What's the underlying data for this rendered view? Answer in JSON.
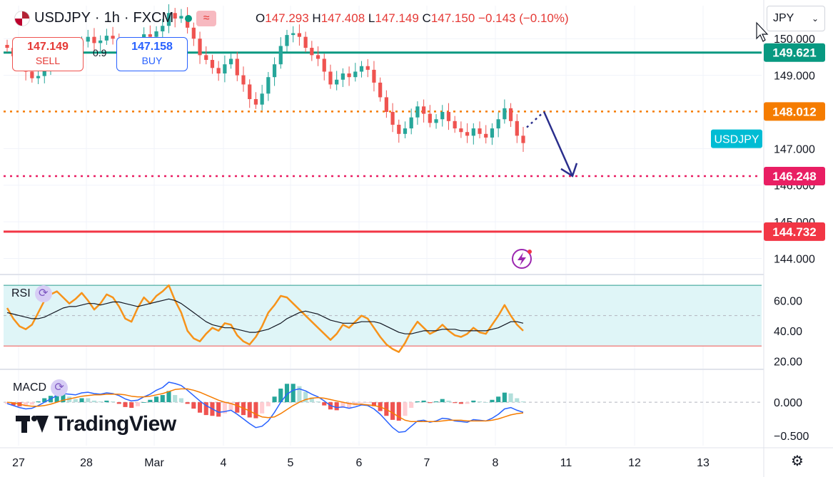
{
  "header": {
    "symbol": "USDJPY",
    "sep1": "·",
    "interval": "1h",
    "sep2": "·",
    "exchange": "FXCM",
    "ohlc": {
      "o_label": "O",
      "o_value": "147.293",
      "h_label": "H",
      "h_value": "147.408",
      "l_label": "L",
      "l_value": "147.149",
      "c_label": "C",
      "c_value": "147.150",
      "change": "−0.143 (−0.10%)"
    }
  },
  "trade": {
    "sell_price": "147.149",
    "sell_label": "SELL",
    "buy_price": "147.158",
    "buy_label": "BUY",
    "spread": "0.9"
  },
  "currency_select": {
    "value": "JPY"
  },
  "brand": {
    "name": "TradingView"
  },
  "colors": {
    "up": "#26a69a",
    "down": "#ef5350",
    "resistance": "#089981",
    "level_orange": "#f57c00",
    "level_pink": "#e91e63",
    "level_red": "#f23645",
    "rsi": "#f7931a",
    "macd": "#2962ff",
    "signal": "#f57c00",
    "arrow": "#2a2e8c"
  },
  "chart_data": [
    {
      "type": "candlestick",
      "title": "USDJPY · 1h · FXCM",
      "x_tick_labels": [
        "27",
        "28",
        "Mar",
        "4",
        "5",
        "6",
        "7",
        "8",
        "11",
        "12",
        "13"
      ],
      "y_tick_labels": [
        "150.000",
        "149.000",
        "147.000",
        "146.000",
        "145.000",
        "144.000"
      ],
      "ylim": [
        143.6,
        150.9
      ],
      "grid": true,
      "price_levels": [
        {
          "label": "149.621",
          "value": 149.621,
          "style": "solid",
          "color": "#089981"
        },
        {
          "label": "148.012",
          "value": 148.012,
          "style": "dotted",
          "color": "#f57c00"
        },
        {
          "label": "146.248",
          "value": 146.248,
          "style": "dotted",
          "color": "#e91e63"
        },
        {
          "label": "144.732",
          "value": 144.732,
          "style": "solid",
          "color": "#f23645"
        }
      ],
      "current_price_label": "USDJPY",
      "last_close": 147.15,
      "projection": {
        "from": 148.01,
        "to": 146.25,
        "direction": "down"
      },
      "closes": [
        149.75,
        149.52,
        149.38,
        149.1,
        148.92,
        148.98,
        149.25,
        149.35,
        149.55,
        149.68,
        149.6,
        149.8,
        149.92,
        150.05,
        149.88,
        149.95,
        150.08,
        150.0,
        149.85,
        149.55,
        149.4,
        149.8,
        150.12,
        150.05,
        150.2,
        150.35,
        150.7,
        150.55,
        150.62,
        150.3,
        150.0,
        149.55,
        149.42,
        149.2,
        149.05,
        149.3,
        149.45,
        149.0,
        148.75,
        148.35,
        148.2,
        148.5,
        148.95,
        149.3,
        149.8,
        150.1,
        150.15,
        150.05,
        149.75,
        149.55,
        149.45,
        149.1,
        148.75,
        148.88,
        149.05,
        148.95,
        149.1,
        149.25,
        149.15,
        148.8,
        148.4,
        148.0,
        147.65,
        147.4,
        147.55,
        147.85,
        148.15,
        147.95,
        147.7,
        147.8,
        148.0,
        147.75,
        147.55,
        147.45,
        147.35,
        147.55,
        147.4,
        147.3,
        147.55,
        147.8,
        148.1,
        147.75,
        147.35,
        147.15
      ]
    },
    {
      "type": "line",
      "title": "RSI",
      "y_tick_labels": [
        "60.00",
        "40.00",
        "20.00"
      ],
      "ylim": [
        16,
        71
      ],
      "band": [
        30,
        70
      ],
      "midline": 50,
      "series": [
        {
          "name": "RSI",
          "values": [
            55,
            48,
            43,
            41,
            44,
            52,
            60,
            64,
            66,
            62,
            58,
            61,
            65,
            60,
            54,
            58,
            64,
            62,
            56,
            48,
            46,
            55,
            62,
            58,
            63,
            66,
            70,
            60,
            52,
            40,
            35,
            33,
            38,
            42,
            40,
            45,
            44,
            37,
            33,
            31,
            36,
            43,
            52,
            57,
            63,
            62,
            58,
            54,
            50,
            46,
            42,
            38,
            34,
            38,
            44,
            42,
            46,
            50,
            48,
            42,
            36,
            31,
            28,
            26,
            32,
            40,
            46,
            42,
            38,
            40,
            44,
            40,
            37,
            36,
            38,
            42,
            39,
            38,
            44,
            50,
            57,
            50,
            44,
            40
          ]
        },
        {
          "values": [
            52,
            51,
            50,
            49,
            48,
            48,
            49,
            51,
            53,
            55,
            56,
            56,
            57,
            58,
            58,
            57,
            58,
            59,
            59,
            58,
            57,
            56,
            57,
            58,
            59,
            60,
            61,
            60,
            58,
            55,
            52,
            49,
            46,
            44,
            43,
            42,
            42,
            41,
            40,
            39,
            39,
            40,
            41,
            43,
            45,
            48,
            50,
            52,
            53,
            52,
            51,
            49,
            47,
            46,
            45,
            45,
            45,
            46,
            46,
            46,
            45,
            43,
            41,
            39,
            38,
            38,
            39,
            40,
            40,
            40,
            41,
            41,
            41,
            40,
            40,
            40,
            40,
            40,
            41,
            42,
            44,
            46,
            46,
            45
          ]
        }
      ]
    },
    {
      "type": "line",
      "title": "MACD",
      "y_tick_labels": [
        "0.000",
        "−0.500"
      ],
      "ylim": [
        -0.65,
        0.45
      ],
      "zero_line": 0,
      "series": [
        {
          "name": "MACD",
          "values": [
            -0.02,
            -0.05,
            -0.08,
            -0.1,
            -0.09,
            -0.05,
            0.0,
            0.05,
            0.1,
            0.13,
            0.12,
            0.11,
            0.14,
            0.15,
            0.13,
            0.12,
            0.14,
            0.13,
            0.1,
            0.05,
            0.02,
            0.03,
            0.08,
            0.12,
            0.18,
            0.22,
            0.3,
            0.28,
            0.25,
            0.18,
            0.1,
            0.02,
            -0.05,
            -0.1,
            -0.15,
            -0.14,
            -0.12,
            -0.18,
            -0.25,
            -0.32,
            -0.38,
            -0.36,
            -0.28,
            -0.15,
            0.0,
            0.12,
            0.18,
            0.2,
            0.17,
            0.12,
            0.08,
            0.02,
            -0.05,
            -0.08,
            -0.07,
            -0.09,
            -0.07,
            -0.04,
            -0.05,
            -0.1,
            -0.18,
            -0.28,
            -0.38,
            -0.45,
            -0.44,
            -0.36,
            -0.28,
            -0.27,
            -0.3,
            -0.28,
            -0.24,
            -0.25,
            -0.28,
            -0.29,
            -0.3,
            -0.26,
            -0.27,
            -0.28,
            -0.24,
            -0.18,
            -0.1,
            -0.08,
            -0.12,
            -0.15
          ]
        },
        {
          "name": "Signal",
          "values": [
            0.0,
            -0.01,
            -0.03,
            -0.05,
            -0.06,
            -0.06,
            -0.05,
            -0.03,
            0.0,
            0.03,
            0.05,
            0.07,
            0.09,
            0.1,
            0.11,
            0.11,
            0.12,
            0.12,
            0.12,
            0.11,
            0.09,
            0.08,
            0.08,
            0.09,
            0.11,
            0.13,
            0.16,
            0.19,
            0.2,
            0.2,
            0.18,
            0.15,
            0.11,
            0.07,
            0.03,
            0.0,
            -0.02,
            -0.05,
            -0.09,
            -0.13,
            -0.18,
            -0.22,
            -0.23,
            -0.22,
            -0.17,
            -0.11,
            -0.05,
            0.0,
            0.04,
            0.06,
            0.07,
            0.06,
            0.04,
            0.02,
            0.0,
            -0.02,
            -0.03,
            -0.03,
            -0.04,
            -0.05,
            -0.07,
            -0.11,
            -0.16,
            -0.22,
            -0.27,
            -0.29,
            -0.29,
            -0.29,
            -0.29,
            -0.29,
            -0.28,
            -0.27,
            -0.27,
            -0.27,
            -0.28,
            -0.28,
            -0.28,
            -0.28,
            -0.27,
            -0.25,
            -0.22,
            -0.19,
            -0.17,
            -0.16
          ]
        }
      ]
    }
  ]
}
